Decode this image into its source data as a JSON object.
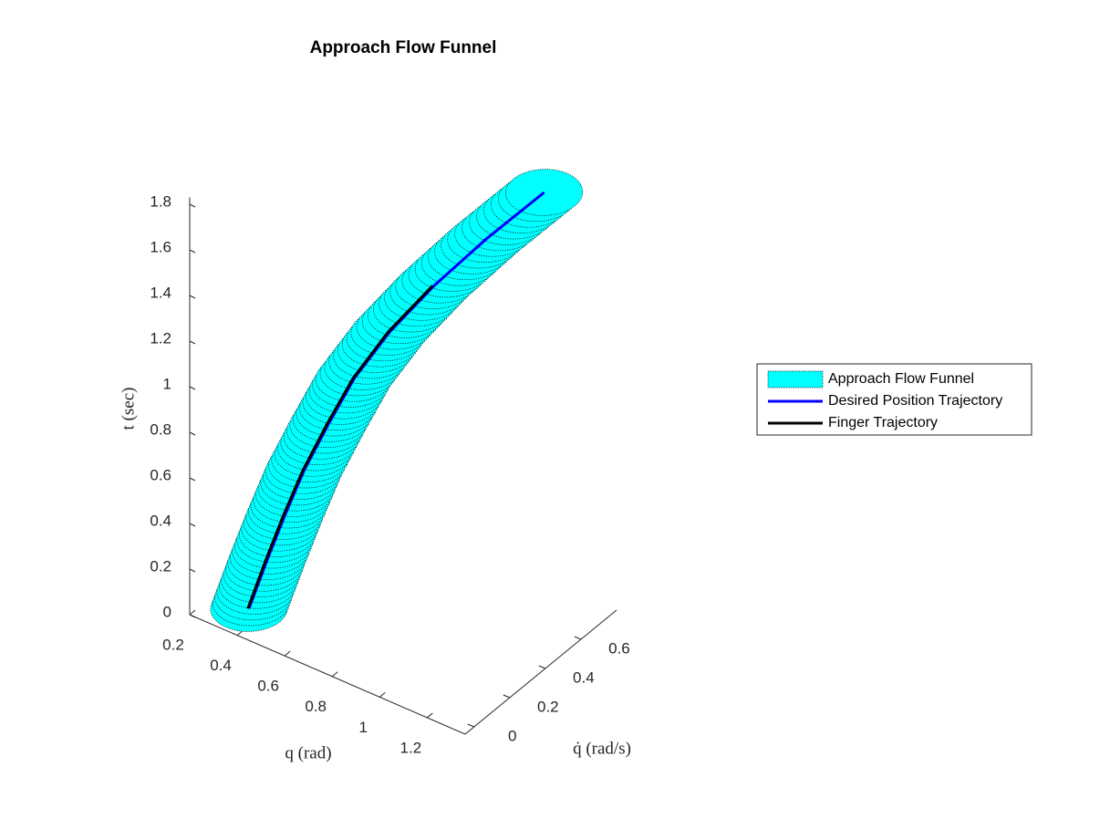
{
  "chart_data": {
    "type": "funnel3d",
    "title": "Approach Flow Funnel",
    "xlabel": "q (rad)",
    "ylabel": "q̇ (rad/s)",
    "zlabel": "t (sec)",
    "t": [
      0,
      0.2,
      0.4,
      0.6,
      0.8,
      1.0,
      1.2,
      1.4,
      1.6,
      1.8
    ],
    "series": [
      {
        "name": "Approach Flow Funnel",
        "color": "#00ffff",
        "q": [
          0.342,
          0.388,
          0.437,
          0.49,
          0.555,
          0.625,
          0.72,
          0.84,
          0.98,
          1.136
        ],
        "qdot": [
          0.094,
          0.129,
          0.166,
          0.205,
          0.255,
          0.307,
          0.379,
          0.469,
          0.574,
          0.692
        ],
        "radius": [
          0.13,
          0.13,
          0.13,
          0.13,
          0.13,
          0.13,
          0.13,
          0.13,
          0.13,
          0.13
        ]
      },
      {
        "name": "Desired Position Trajectory",
        "color": "#0000ff",
        "q": [
          0.342,
          0.388,
          0.437,
          0.49,
          0.555,
          0.625,
          0.72,
          0.84,
          0.98,
          1.136
        ],
        "qdot": [
          0.094,
          0.129,
          0.166,
          0.205,
          0.255,
          0.307,
          0.379,
          0.469,
          0.574,
          0.692
        ]
      },
      {
        "name": "Finger Trajectory",
        "color": "#000000",
        "q": [
          0.34,
          0.385,
          0.433,
          0.487,
          0.551,
          0.622,
          0.716,
          0.836,
          null,
          null
        ],
        "qdot": [
          0.09,
          0.126,
          0.163,
          0.202,
          0.252,
          0.304,
          0.376,
          0.466,
          null,
          null
        ]
      }
    ],
    "xlim": [
      0.2,
      1.36
    ],
    "xticks": [
      0.2,
      0.4,
      0.6,
      0.8,
      1,
      1.2
    ],
    "ylim": [
      -0.05,
      0.8
    ],
    "yticks": [
      0,
      0.2,
      0.4,
      0.6
    ],
    "zlim": [
      0,
      1.83
    ],
    "zticks": [
      0,
      0.2,
      0.4,
      0.6,
      0.8,
      1,
      1.2,
      1.4,
      1.6,
      1.8
    ]
  }
}
